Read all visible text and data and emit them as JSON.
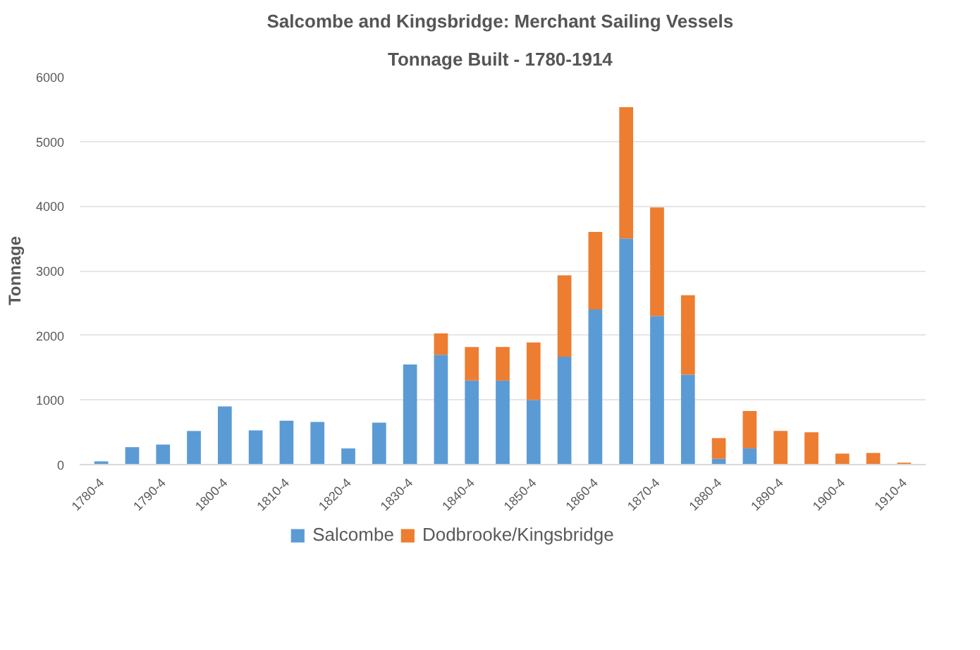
{
  "chart_data": {
    "type": "bar",
    "title": "Salcombe and Kingsbridge:  Merchant Sailing Vessels",
    "subtitle": "Tonnage Built -  1780-1914",
    "ylabel": "Tonnage",
    "stacked": true,
    "legend": "bottom",
    "grid": "y",
    "categories": [
      "1780-4",
      null,
      "1790-4",
      null,
      "1800-4",
      null,
      "1810-4",
      null,
      "1820-4",
      null,
      "1830-4",
      null,
      "1840-4",
      null,
      "1850-4",
      null,
      "1860-4",
      null,
      "1870-4",
      null,
      "1880-4",
      null,
      "1890-4",
      null,
      "1900-4",
      null,
      "1910-4"
    ],
    "ylim": [
      0,
      6000
    ],
    "yticks": [
      0,
      1000,
      2000,
      3000,
      4000,
      5000,
      6000
    ],
    "series": [
      {
        "name": "Salcombe",
        "color": "#5b9bd5",
        "values": [
          50,
          270,
          310,
          520,
          900,
          530,
          680,
          660,
          250,
          650,
          1550,
          1700,
          1300,
          1300,
          1000,
          1670,
          2400,
          3500,
          2300,
          1390,
          90,
          250,
          0,
          0,
          0,
          0,
          0
        ]
      },
      {
        "name": "Dodbrooke/Kingsbridge",
        "color": "#ed7d31",
        "values": [
          0,
          0,
          0,
          0,
          0,
          0,
          0,
          0,
          0,
          0,
          0,
          330,
          520,
          520,
          890,
          1260,
          1200,
          2030,
          1680,
          1230,
          320,
          580,
          520,
          500,
          170,
          180,
          30
        ]
      }
    ]
  }
}
